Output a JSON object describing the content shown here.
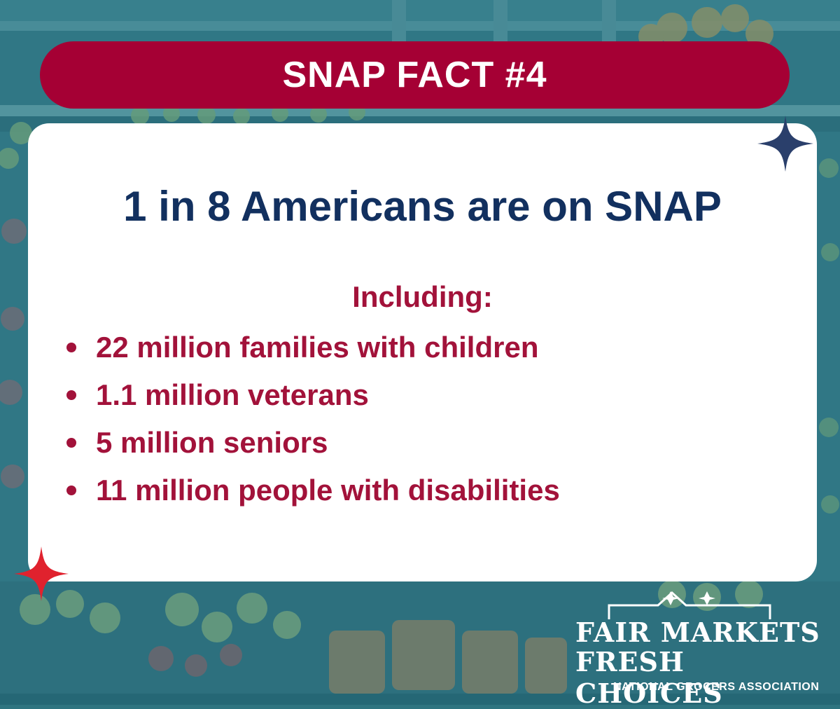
{
  "banner": {
    "title": "SNAP FACT #4"
  },
  "card": {
    "headline": "1 in 8 Americans are on SNAP",
    "intro": "Including:",
    "facts": [
      "22 million families with children",
      "1.1 million veterans",
      "5 million seniors",
      "11 million people with disabilities"
    ]
  },
  "logo": {
    "line1": "FAIR MARKETS",
    "line2": "FRESH CHOICES",
    "subtitle": "NATIONAL GROCERS ASSOCIATION"
  },
  "colors": {
    "banner": "#a50034",
    "headline": "#12305f",
    "fact_text": "#a2123a",
    "sparkle_navy": "#2a3f6b",
    "sparkle_red": "#e0222e",
    "background_tint": "#2f7480"
  },
  "icons": [
    "navy-sparkle-icon",
    "red-sparkle-icon",
    "shopping-basket-icon"
  ]
}
